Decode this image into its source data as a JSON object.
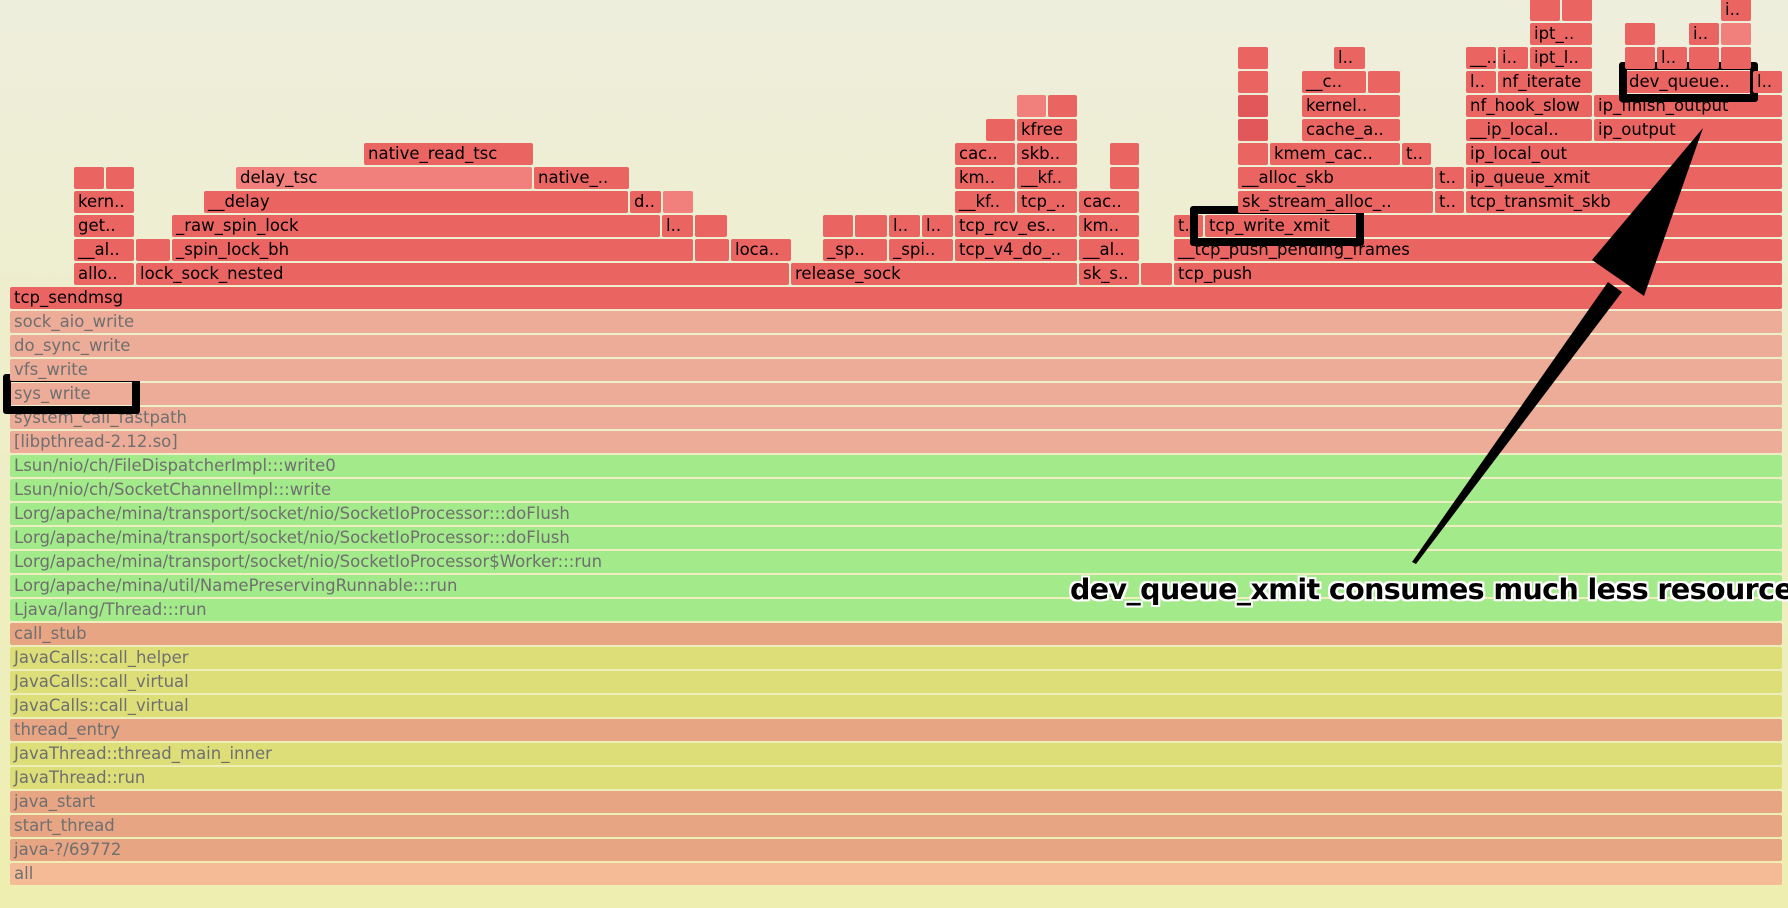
{
  "colors": {
    "kernel_a": "#ea6462",
    "kernel_b": "#f17f7c",
    "kernel_c": "#e2575a",
    "lib": "#ecac98",
    "java": "#a3ea8a",
    "jvm": "#dede78",
    "native": "#e8a584",
    "root": "#f4bb96",
    "background_top": "#eeeedd",
    "background_bottom": "#eeeeb0"
  },
  "frames": [
    {
      "label": "all",
      "depth": 0,
      "start": 0,
      "width": 1773,
      "kind": "root"
    },
    {
      "label": "java-?/69772",
      "depth": 1,
      "start": 0,
      "width": 1773,
      "kind": "native"
    },
    {
      "label": "start_thread",
      "depth": 2,
      "start": 0,
      "width": 1773,
      "kind": "native"
    },
    {
      "label": "java_start",
      "depth": 3,
      "start": 0,
      "width": 1773,
      "kind": "native"
    },
    {
      "label": "JavaThread::run",
      "depth": 4,
      "start": 0,
      "width": 1773,
      "kind": "jvm"
    },
    {
      "label": "JavaThread::thread_main_inner",
      "depth": 5,
      "start": 0,
      "width": 1773,
      "kind": "jvm"
    },
    {
      "label": "thread_entry",
      "depth": 6,
      "start": 0,
      "width": 1773,
      "kind": "native"
    },
    {
      "label": "JavaCalls::call_virtual",
      "depth": 7,
      "start": 0,
      "width": 1773,
      "kind": "jvm"
    },
    {
      "label": "JavaCalls::call_virtual",
      "depth": 8,
      "start": 0,
      "width": 1773,
      "kind": "jvm"
    },
    {
      "label": "JavaCalls::call_helper",
      "depth": 9,
      "start": 0,
      "width": 1773,
      "kind": "jvm"
    },
    {
      "label": "call_stub",
      "depth": 10,
      "start": 0,
      "width": 1773,
      "kind": "native"
    },
    {
      "label": "Ljava/lang/Thread:::run",
      "depth": 11,
      "start": 0,
      "width": 1773,
      "kind": "java"
    },
    {
      "label": "Lorg/apache/mina/util/NamePreservingRunnable:::run",
      "depth": 12,
      "start": 0,
      "width": 1773,
      "kind": "java"
    },
    {
      "label": "Lorg/apache/mina/transport/socket/nio/SocketIoProcessor$Worker:::run",
      "depth": 13,
      "start": 0,
      "width": 1773,
      "kind": "java"
    },
    {
      "label": "Lorg/apache/mina/transport/socket/nio/SocketIoProcessor:::doFlush",
      "depth": 14,
      "start": 0,
      "width": 1773,
      "kind": "java"
    },
    {
      "label": "Lorg/apache/mina/transport/socket/nio/SocketIoProcessor:::doFlush",
      "depth": 15,
      "start": 0,
      "width": 1773,
      "kind": "java"
    },
    {
      "label": "Lsun/nio/ch/SocketChannelImpl:::write",
      "depth": 16,
      "start": 0,
      "width": 1773,
      "kind": "java"
    },
    {
      "label": "Lsun/nio/ch/FileDispatcherImpl:::write0",
      "depth": 17,
      "start": 0,
      "width": 1773,
      "kind": "java"
    },
    {
      "label": "[libpthread-2.12.so]",
      "depth": 18,
      "start": 0,
      "width": 1773,
      "kind": "lib"
    },
    {
      "label": "system_call_fastpath",
      "depth": 19,
      "start": 0,
      "width": 1773,
      "kind": "lib"
    },
    {
      "label": "sys_write",
      "depth": 20,
      "start": 0,
      "width": 1773,
      "kind": "lib"
    },
    {
      "label": "vfs_write",
      "depth": 21,
      "start": 0,
      "width": 1773,
      "kind": "lib"
    },
    {
      "label": "do_sync_write",
      "depth": 22,
      "start": 0,
      "width": 1773,
      "kind": "lib"
    },
    {
      "label": "sock_aio_write",
      "depth": 23,
      "start": 0,
      "width": 1773,
      "kind": "lib"
    },
    {
      "label": "tcp_sendmsg",
      "depth": 24,
      "start": 0,
      "width": 1773,
      "kind": "kernel_a"
    },
    {
      "label": "allo..",
      "depth": 25,
      "start": 64,
      "width": 61,
      "kind": "kernel_a"
    },
    {
      "label": "__al..",
      "depth": 26,
      "start": 64,
      "width": 61,
      "kind": "kernel_a"
    },
    {
      "label": "get..",
      "depth": 27,
      "start": 64,
      "width": 61,
      "kind": "kernel_a"
    },
    {
      "label": "kern..",
      "depth": 28,
      "start": 64,
      "width": 61,
      "kind": "kernel_a"
    },
    {
      "label": "",
      "depth": 29,
      "start": 64,
      "width": 31,
      "kind": "kernel_a"
    },
    {
      "label": "",
      "depth": 29,
      "start": 96,
      "width": 29,
      "kind": "kernel_a"
    },
    {
      "label": "lock_sock_nested",
      "depth": 25,
      "start": 126,
      "width": 654,
      "kind": "kernel_a"
    },
    {
      "label": "",
      "depth": 26,
      "start": 126,
      "width": 35,
      "kind": "kernel_a"
    },
    {
      "label": "_spin_lock_bh",
      "depth": 26,
      "start": 162,
      "width": 522,
      "kind": "kernel_a"
    },
    {
      "label": "",
      "depth": 26,
      "start": 685,
      "width": 35,
      "kind": "kernel_a"
    },
    {
      "label": "loca..",
      "depth": 26,
      "start": 721,
      "width": 61,
      "kind": "kernel_a"
    },
    {
      "label": "_raw_spin_lock",
      "depth": 27,
      "start": 162,
      "width": 489,
      "kind": "kernel_a"
    },
    {
      "label": "l..",
      "depth": 27,
      "start": 652,
      "width": 32,
      "kind": "kernel_a"
    },
    {
      "label": "",
      "depth": 27,
      "start": 685,
      "width": 33,
      "kind": "kernel_a"
    },
    {
      "label": "__delay",
      "depth": 28,
      "start": 194,
      "width": 425,
      "kind": "kernel_a"
    },
    {
      "label": "d..",
      "depth": 28,
      "start": 620,
      "width": 32,
      "kind": "kernel_a"
    },
    {
      "label": "",
      "depth": 28,
      "start": 653,
      "width": 31,
      "kind": "kernel_b"
    },
    {
      "label": "delay_tsc",
      "depth": 29,
      "start": 226,
      "width": 297,
      "kind": "kernel_b"
    },
    {
      "label": "native_..",
      "depth": 29,
      "start": 524,
      "width": 96,
      "kind": "kernel_a"
    },
    {
      "label": "native_read_tsc",
      "depth": 30,
      "start": 354,
      "width": 170,
      "kind": "kernel_a"
    },
    {
      "label": "release_sock",
      "depth": 25,
      "start": 781,
      "width": 287,
      "kind": "kernel_a"
    },
    {
      "label": "_sp..",
      "depth": 26,
      "start": 813,
      "width": 65,
      "kind": "kernel_a"
    },
    {
      "label": "_spi..",
      "depth": 26,
      "start": 879,
      "width": 65,
      "kind": "kernel_a"
    },
    {
      "label": "tcp_v4_do_..",
      "depth": 26,
      "start": 945,
      "width": 123,
      "kind": "kernel_a"
    },
    {
      "label": "",
      "depth": 27,
      "start": 813,
      "width": 31,
      "kind": "kernel_a"
    },
    {
      "label": "",
      "depth": 27,
      "start": 845,
      "width": 33,
      "kind": "kernel_a"
    },
    {
      "label": "l..",
      "depth": 27,
      "start": 879,
      "width": 32,
      "kind": "kernel_a"
    },
    {
      "label": "l..",
      "depth": 27,
      "start": 912,
      "width": 32,
      "kind": "kernel_a"
    },
    {
      "label": "tcp_rcv_es..",
      "depth": 27,
      "start": 945,
      "width": 123,
      "kind": "kernel_a"
    },
    {
      "label": "__kf..",
      "depth": 28,
      "start": 945,
      "width": 61,
      "kind": "kernel_a"
    },
    {
      "label": "tcp_..",
      "depth": 28,
      "start": 1007,
      "width": 61,
      "kind": "kernel_a"
    },
    {
      "label": "km..",
      "depth": 29,
      "start": 945,
      "width": 61,
      "kind": "kernel_a"
    },
    {
      "label": "__kf..",
      "depth": 29,
      "start": 1007,
      "width": 61,
      "kind": "kernel_a"
    },
    {
      "label": "cac..",
      "depth": 30,
      "start": 945,
      "width": 61,
      "kind": "kernel_a"
    },
    {
      "label": "skb..",
      "depth": 30,
      "start": 1007,
      "width": 61,
      "kind": "kernel_a"
    },
    {
      "label": "",
      "depth": 31,
      "start": 976,
      "width": 30,
      "kind": "kernel_a"
    },
    {
      "label": "kfree",
      "depth": 31,
      "start": 1007,
      "width": 61,
      "kind": "kernel_a"
    },
    {
      "label": "",
      "depth": 32,
      "start": 1007,
      "width": 30,
      "kind": "kernel_b"
    },
    {
      "label": "",
      "depth": 32,
      "start": 1038,
      "width": 30,
      "kind": "kernel_a"
    },
    {
      "label": "sk_s..",
      "depth": 25,
      "start": 1069,
      "width": 61,
      "kind": "kernel_a"
    },
    {
      "label": "__al..",
      "depth": 26,
      "start": 1069,
      "width": 61,
      "kind": "kernel_a"
    },
    {
      "label": "km..",
      "depth": 27,
      "start": 1069,
      "width": 61,
      "kind": "kernel_a"
    },
    {
      "label": "cac..",
      "depth": 28,
      "start": 1069,
      "width": 61,
      "kind": "kernel_a"
    },
    {
      "label": "",
      "depth": 29,
      "start": 1100,
      "width": 30,
      "kind": "kernel_a"
    },
    {
      "label": "",
      "depth": 30,
      "start": 1100,
      "width": 30,
      "kind": "kernel_a"
    },
    {
      "label": "",
      "depth": 25,
      "start": 1131,
      "width": 32,
      "kind": "kernel_a"
    },
    {
      "label": "tcp_push",
      "depth": 25,
      "start": 1164,
      "width": 609,
      "kind": "kernel_a"
    },
    {
      "label": "__tcp_push_pending_frames",
      "depth": 26,
      "start": 1164,
      "width": 609,
      "kind": "kernel_a"
    },
    {
      "label": "t..",
      "depth": 27,
      "start": 1164,
      "width": 30,
      "kind": "kernel_a"
    },
    {
      "label": "tcp_write_xmit",
      "depth": 27,
      "start": 1195,
      "width": 578,
      "kind": "kernel_a"
    },
    {
      "label": "sk_stream_alloc_..",
      "depth": 28,
      "start": 1228,
      "width": 196,
      "kind": "kernel_a"
    },
    {
      "label": "t..",
      "depth": 28,
      "start": 1425,
      "width": 30,
      "kind": "kernel_a"
    },
    {
      "label": "tcp_transmit_skb",
      "depth": 28,
      "start": 1456,
      "width": 317,
      "kind": "kernel_a"
    },
    {
      "label": "__alloc_skb",
      "depth": 29,
      "start": 1228,
      "width": 196,
      "kind": "kernel_a"
    },
    {
      "label": "t..",
      "depth": 29,
      "start": 1425,
      "width": 30,
      "kind": "kernel_a"
    },
    {
      "label": "ip_queue_xmit",
      "depth": 29,
      "start": 1456,
      "width": 317,
      "kind": "kernel_a"
    },
    {
      "label": "",
      "depth": 30,
      "start": 1228,
      "width": 31,
      "kind": "kernel_a"
    },
    {
      "label": "kmem_cac..",
      "depth": 30,
      "start": 1260,
      "width": 131,
      "kind": "kernel_a"
    },
    {
      "label": "t..",
      "depth": 30,
      "start": 1392,
      "width": 30,
      "kind": "kernel_a"
    },
    {
      "label": "ip_local_out",
      "depth": 30,
      "start": 1456,
      "width": 317,
      "kind": "kernel_a"
    },
    {
      "label": "",
      "depth": 31,
      "start": 1228,
      "width": 31,
      "kind": "kernel_c"
    },
    {
      "label": "cache_a..",
      "depth": 31,
      "start": 1292,
      "width": 99,
      "kind": "kernel_a"
    },
    {
      "label": "__ip_local..",
      "depth": 31,
      "start": 1456,
      "width": 127,
      "kind": "kernel_a"
    },
    {
      "label": "ip_output",
      "depth": 31,
      "start": 1584,
      "width": 189,
      "kind": "kernel_a"
    },
    {
      "label": "",
      "depth": 32,
      "start": 1228,
      "width": 31,
      "kind": "kernel_c"
    },
    {
      "label": "kernel..",
      "depth": 32,
      "start": 1292,
      "width": 99,
      "kind": "kernel_a"
    },
    {
      "label": "nf_hook_slow",
      "depth": 32,
      "start": 1456,
      "width": 127,
      "kind": "kernel_a"
    },
    {
      "label": "ip_finish_output",
      "depth": 32,
      "start": 1584,
      "width": 189,
      "kind": "kernel_a"
    },
    {
      "label": "",
      "depth": 33,
      "start": 1228,
      "width": 31,
      "kind": "kernel_a"
    },
    {
      "label": "__c..",
      "depth": 33,
      "start": 1292,
      "width": 65,
      "kind": "kernel_a"
    },
    {
      "label": "",
      "depth": 33,
      "start": 1358,
      "width": 33,
      "kind": "kernel_a"
    },
    {
      "label": "l..",
      "depth": 33,
      "start": 1456,
      "width": 31,
      "kind": "kernel_a"
    },
    {
      "label": "nf_iterate",
      "depth": 33,
      "start": 1488,
      "width": 95,
      "kind": "kernel_a"
    },
    {
      "label": "dev_queue..",
      "depth": 33,
      "start": 1615,
      "width": 127,
      "kind": "kernel_a"
    },
    {
      "label": "l..",
      "depth": 33,
      "start": 1743,
      "width": 30,
      "kind": "kernel_a"
    },
    {
      "label": "",
      "depth": 34,
      "start": 1228,
      "width": 31,
      "kind": "kernel_a"
    },
    {
      "label": "l..",
      "depth": 34,
      "start": 1324,
      "width": 32,
      "kind": "kernel_a"
    },
    {
      "label": "__..",
      "depth": 34,
      "start": 1456,
      "width": 31,
      "kind": "kernel_a"
    },
    {
      "label": "i..",
      "depth": 34,
      "start": 1488,
      "width": 31,
      "kind": "kernel_a"
    },
    {
      "label": "ipt_l..",
      "depth": 34,
      "start": 1520,
      "width": 63,
      "kind": "kernel_a"
    },
    {
      "label": "",
      "depth": 34,
      "start": 1615,
      "width": 31,
      "kind": "kernel_a"
    },
    {
      "label": "l..",
      "depth": 34,
      "start": 1647,
      "width": 31,
      "kind": "kernel_a"
    },
    {
      "label": "",
      "depth": 34,
      "start": 1679,
      "width": 31,
      "kind": "kernel_a"
    },
    {
      "label": "",
      "depth": 34,
      "start": 1711,
      "width": 31,
      "kind": "kernel_a"
    },
    {
      "label": "ipt_..",
      "depth": 35,
      "start": 1520,
      "width": 63,
      "kind": "kernel_a"
    },
    {
      "label": "",
      "depth": 35,
      "start": 1615,
      "width": 31,
      "kind": "kernel_a"
    },
    {
      "label": "i..",
      "depth": 35,
      "start": 1679,
      "width": 31,
      "kind": "kernel_a"
    },
    {
      "label": "",
      "depth": 35,
      "start": 1711,
      "width": 31,
      "kind": "kernel_b"
    },
    {
      "label": "",
      "depth": 36,
      "start": 1520,
      "width": 31,
      "kind": "kernel_a"
    },
    {
      "label": "",
      "depth": 36,
      "start": 1552,
      "width": 31,
      "kind": "kernel_a"
    },
    {
      "label": "i..",
      "depth": 36,
      "start": 1711,
      "width": 31,
      "kind": "kernel_a"
    }
  ],
  "highlights": [
    "sys_write",
    "tcp_write_xmit",
    "dev_queue.."
  ],
  "annotation": {
    "text": "dev_queue_xmit consumes much less resources",
    "points_to": "dev_queue.."
  }
}
